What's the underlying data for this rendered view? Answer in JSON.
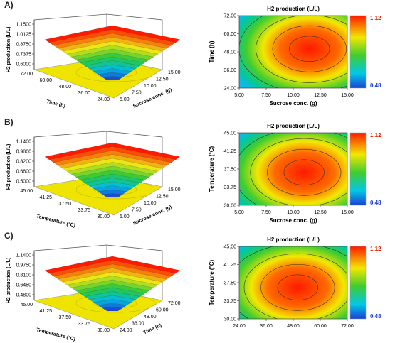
{
  "figure": {
    "colors": {
      "high": "#ff1a00",
      "mid": "#33cc33",
      "low": "#1c3fd6",
      "floor": "#f0e000"
    }
  },
  "chart_data": [
    {
      "panel": "A)",
      "type": "surface",
      "zlabel": "H2 production (L/L)",
      "zticks": [
        "1.1500",
        "1.0125",
        "0.8750",
        "0.7375",
        "0.6000"
      ],
      "ylabel": "Time (h)",
      "yticks": [
        "72.00",
        "60.00",
        "48.00",
        "36.00",
        "24.00"
      ],
      "xlabel": "Sucrose conc. (g)",
      "xticks": [
        "5.00",
        "7.50",
        "10.00",
        "12.50",
        "15.00"
      ]
    },
    {
      "panel": "A)",
      "type": "heatmap",
      "title": "H2 production (L/L)",
      "xlabel": "Sucrose conc. (g)",
      "ylabel": "Time (h)",
      "xticks": [
        "5.00",
        "7.50",
        "10.00",
        "12.50",
        "15.00"
      ],
      "yticks": [
        "72.00",
        "60.00",
        "48.00",
        "36.00",
        "24.00"
      ],
      "xlim": [
        5,
        15
      ],
      "ylim": [
        24,
        72
      ],
      "optimum": [
        11.5,
        50
      ],
      "colorbar": {
        "max": "1.12",
        "min": "0.48"
      }
    },
    {
      "panel": "B)",
      "type": "surface",
      "zlabel": "H2 production (L/L)",
      "zticks": [
        "1.1400",
        "0.9800",
        "0.8200",
        "0.6600",
        "0.5000"
      ],
      "ylabel": "Temperature (°C)",
      "yticks": [
        "45.00",
        "41.25",
        "37.50",
        "33.75",
        "30.00"
      ],
      "xlabel": "Sucrose conc. (g)",
      "xticks": [
        "5.00",
        "7.50",
        "10.00",
        "12.50",
        "15.00"
      ]
    },
    {
      "panel": "B)",
      "type": "heatmap",
      "title": "H2 production (L/L)",
      "xlabel": "Sucrose conc. (g)",
      "ylabel": "Temperature (°C)",
      "xticks": [
        "5.00",
        "7.50",
        "10.00",
        "12.50",
        "15.00"
      ],
      "yticks": [
        "45.00",
        "41.25",
        "37.50",
        "33.75",
        "30.00"
      ],
      "xlim": [
        5,
        15
      ],
      "ylim": [
        30,
        45
      ],
      "optimum": [
        11,
        36.8
      ],
      "colorbar": {
        "max": "1.12",
        "min": "0.48"
      }
    },
    {
      "panel": "C)",
      "type": "surface",
      "zlabel": "H2 production (L/L)",
      "zticks": [
        "1.1400",
        "0.9750",
        "0.8100",
        "0.6450",
        "0.4800"
      ],
      "ylabel": "Temperature (°C)",
      "yticks": [
        "45.00",
        "41.25",
        "37.50",
        "33.75",
        "30.00"
      ],
      "xlabel": "Time (h)",
      "xticks": [
        "24.00",
        "36.00",
        "48.00",
        "60.00",
        "72.00"
      ]
    },
    {
      "panel": "C)",
      "type": "heatmap",
      "title": "H2 production (L/L)",
      "xlabel": "",
      "ylabel": "Temperature (°C)",
      "xticks": [
        "24.00",
        "36.00",
        "48.00",
        "60.00",
        "72.00"
      ],
      "yticks": [
        "45.00",
        "41.25",
        "37.50",
        "33.75",
        "30.00"
      ],
      "xlim": [
        24,
        72
      ],
      "ylim": [
        30,
        45
      ],
      "optimum": [
        50,
        36.5
      ],
      "colorbar": {
        "max": "1.12",
        "min": "0.48"
      }
    }
  ]
}
